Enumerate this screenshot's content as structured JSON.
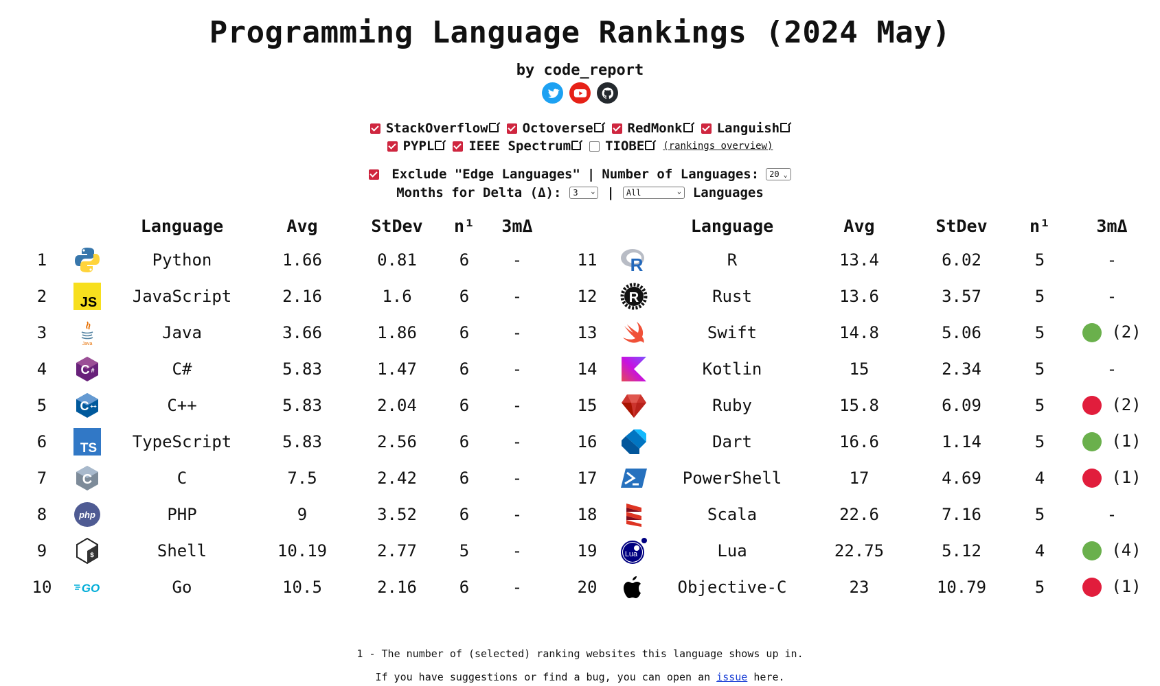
{
  "header": {
    "title": "Programming Language Rankings (2024 May)",
    "byline": "by code_report",
    "socials": [
      "twitter-icon",
      "youtube-icon",
      "github-icon"
    ]
  },
  "sources": {
    "row1": [
      {
        "label": "StackOverflow",
        "checked": true
      },
      {
        "label": "Octoverse",
        "checked": true
      },
      {
        "label": "RedMonk",
        "checked": true
      },
      {
        "label": "Languish",
        "checked": true
      }
    ],
    "row2": [
      {
        "label": "PYPL",
        "checked": true
      },
      {
        "label": "IEEE Spectrum",
        "checked": true
      },
      {
        "label": "TIOBE",
        "checked": false
      }
    ],
    "rankings_overview": "(rankings overview)"
  },
  "controls": {
    "exclude_label": "Exclude \"Edge Languages\"",
    "exclude_checked": true,
    "sep": "|",
    "num_languages_label": "Number of Languages:",
    "num_languages_value": "20",
    "months_label": "Months for Delta (Δ):",
    "months_value": "3",
    "filter_value": "All",
    "languages_label": "Languages"
  },
  "table": {
    "headers": {
      "language": "Language",
      "avg": "Avg",
      "stdev": "StDev",
      "n": "n¹",
      "delta": "3mΔ"
    },
    "left": [
      {
        "rank": "1",
        "lang": "Python",
        "avg": "1.66",
        "stdev": "0.81",
        "n": "6",
        "delta": "-",
        "dir": "",
        "icon": "python-logo-icon"
      },
      {
        "rank": "2",
        "lang": "JavaScript",
        "avg": "2.16",
        "stdev": "1.6",
        "n": "6",
        "delta": "-",
        "dir": "",
        "icon": "javascript-logo-icon"
      },
      {
        "rank": "3",
        "lang": "Java",
        "avg": "3.66",
        "stdev": "1.86",
        "n": "6",
        "delta": "-",
        "dir": "",
        "icon": "java-logo-icon"
      },
      {
        "rank": "4",
        "lang": "C#",
        "avg": "5.83",
        "stdev": "1.47",
        "n": "6",
        "delta": "-",
        "dir": "",
        "icon": "csharp-logo-icon"
      },
      {
        "rank": "5",
        "lang": "C++",
        "avg": "5.83",
        "stdev": "2.04",
        "n": "6",
        "delta": "-",
        "dir": "",
        "icon": "cpp-logo-icon"
      },
      {
        "rank": "6",
        "lang": "TypeScript",
        "avg": "5.83",
        "stdev": "2.56",
        "n": "6",
        "delta": "-",
        "dir": "",
        "icon": "typescript-logo-icon"
      },
      {
        "rank": "7",
        "lang": "C",
        "avg": "7.5",
        "stdev": "2.42",
        "n": "6",
        "delta": "-",
        "dir": "",
        "icon": "c-logo-icon"
      },
      {
        "rank": "8",
        "lang": "PHP",
        "avg": "9",
        "stdev": "3.52",
        "n": "6",
        "delta": "-",
        "dir": "",
        "icon": "php-logo-icon"
      },
      {
        "rank": "9",
        "lang": "Shell",
        "avg": "10.19",
        "stdev": "2.77",
        "n": "5",
        "delta": "-",
        "dir": "",
        "icon": "shell-logo-icon"
      },
      {
        "rank": "10",
        "lang": "Go",
        "avg": "10.5",
        "stdev": "2.16",
        "n": "6",
        "delta": "-",
        "dir": "",
        "icon": "go-logo-icon"
      }
    ],
    "right": [
      {
        "rank": "11",
        "lang": "R",
        "avg": "13.4",
        "stdev": "6.02",
        "n": "5",
        "delta": "-",
        "dir": "",
        "icon": "r-logo-icon"
      },
      {
        "rank": "12",
        "lang": "Rust",
        "avg": "13.6",
        "stdev": "3.57",
        "n": "5",
        "delta": "-",
        "dir": "",
        "icon": "rust-logo-icon"
      },
      {
        "rank": "13",
        "lang": "Swift",
        "avg": "14.8",
        "stdev": "5.06",
        "n": "5",
        "delta": "(2)",
        "dir": "up",
        "icon": "swift-logo-icon"
      },
      {
        "rank": "14",
        "lang": "Kotlin",
        "avg": "15",
        "stdev": "2.34",
        "n": "5",
        "delta": "-",
        "dir": "",
        "icon": "kotlin-logo-icon"
      },
      {
        "rank": "15",
        "lang": "Ruby",
        "avg": "15.8",
        "stdev": "6.09",
        "n": "5",
        "delta": "(2)",
        "dir": "down",
        "icon": "ruby-logo-icon"
      },
      {
        "rank": "16",
        "lang": "Dart",
        "avg": "16.6",
        "stdev": "1.14",
        "n": "5",
        "delta": "(1)",
        "dir": "up",
        "icon": "dart-logo-icon"
      },
      {
        "rank": "17",
        "lang": "PowerShell",
        "avg": "17",
        "stdev": "4.69",
        "n": "4",
        "delta": "(1)",
        "dir": "down",
        "icon": "powershell-logo-icon"
      },
      {
        "rank": "18",
        "lang": "Scala",
        "avg": "22.6",
        "stdev": "7.16",
        "n": "5",
        "delta": "-",
        "dir": "",
        "icon": "scala-logo-icon"
      },
      {
        "rank": "19",
        "lang": "Lua",
        "avg": "22.75",
        "stdev": "5.12",
        "n": "4",
        "delta": "(4)",
        "dir": "up",
        "icon": "lua-logo-icon"
      },
      {
        "rank": "20",
        "lang": "Objective-C",
        "avg": "23",
        "stdev": "10.79",
        "n": "5",
        "delta": "(1)",
        "dir": "down",
        "icon": "apple-logo-icon"
      }
    ]
  },
  "colors": {
    "up": "#6ab04c",
    "down": "#e11d3c",
    "checkbox": "#d0263f"
  },
  "footer": {
    "note": "1 - The number of (selected) ranking websites this language shows up in.",
    "suggest_pre": "If you have suggestions or find a bug, you can open an",
    "suggest_link": "issue",
    "suggest_post": "here."
  }
}
